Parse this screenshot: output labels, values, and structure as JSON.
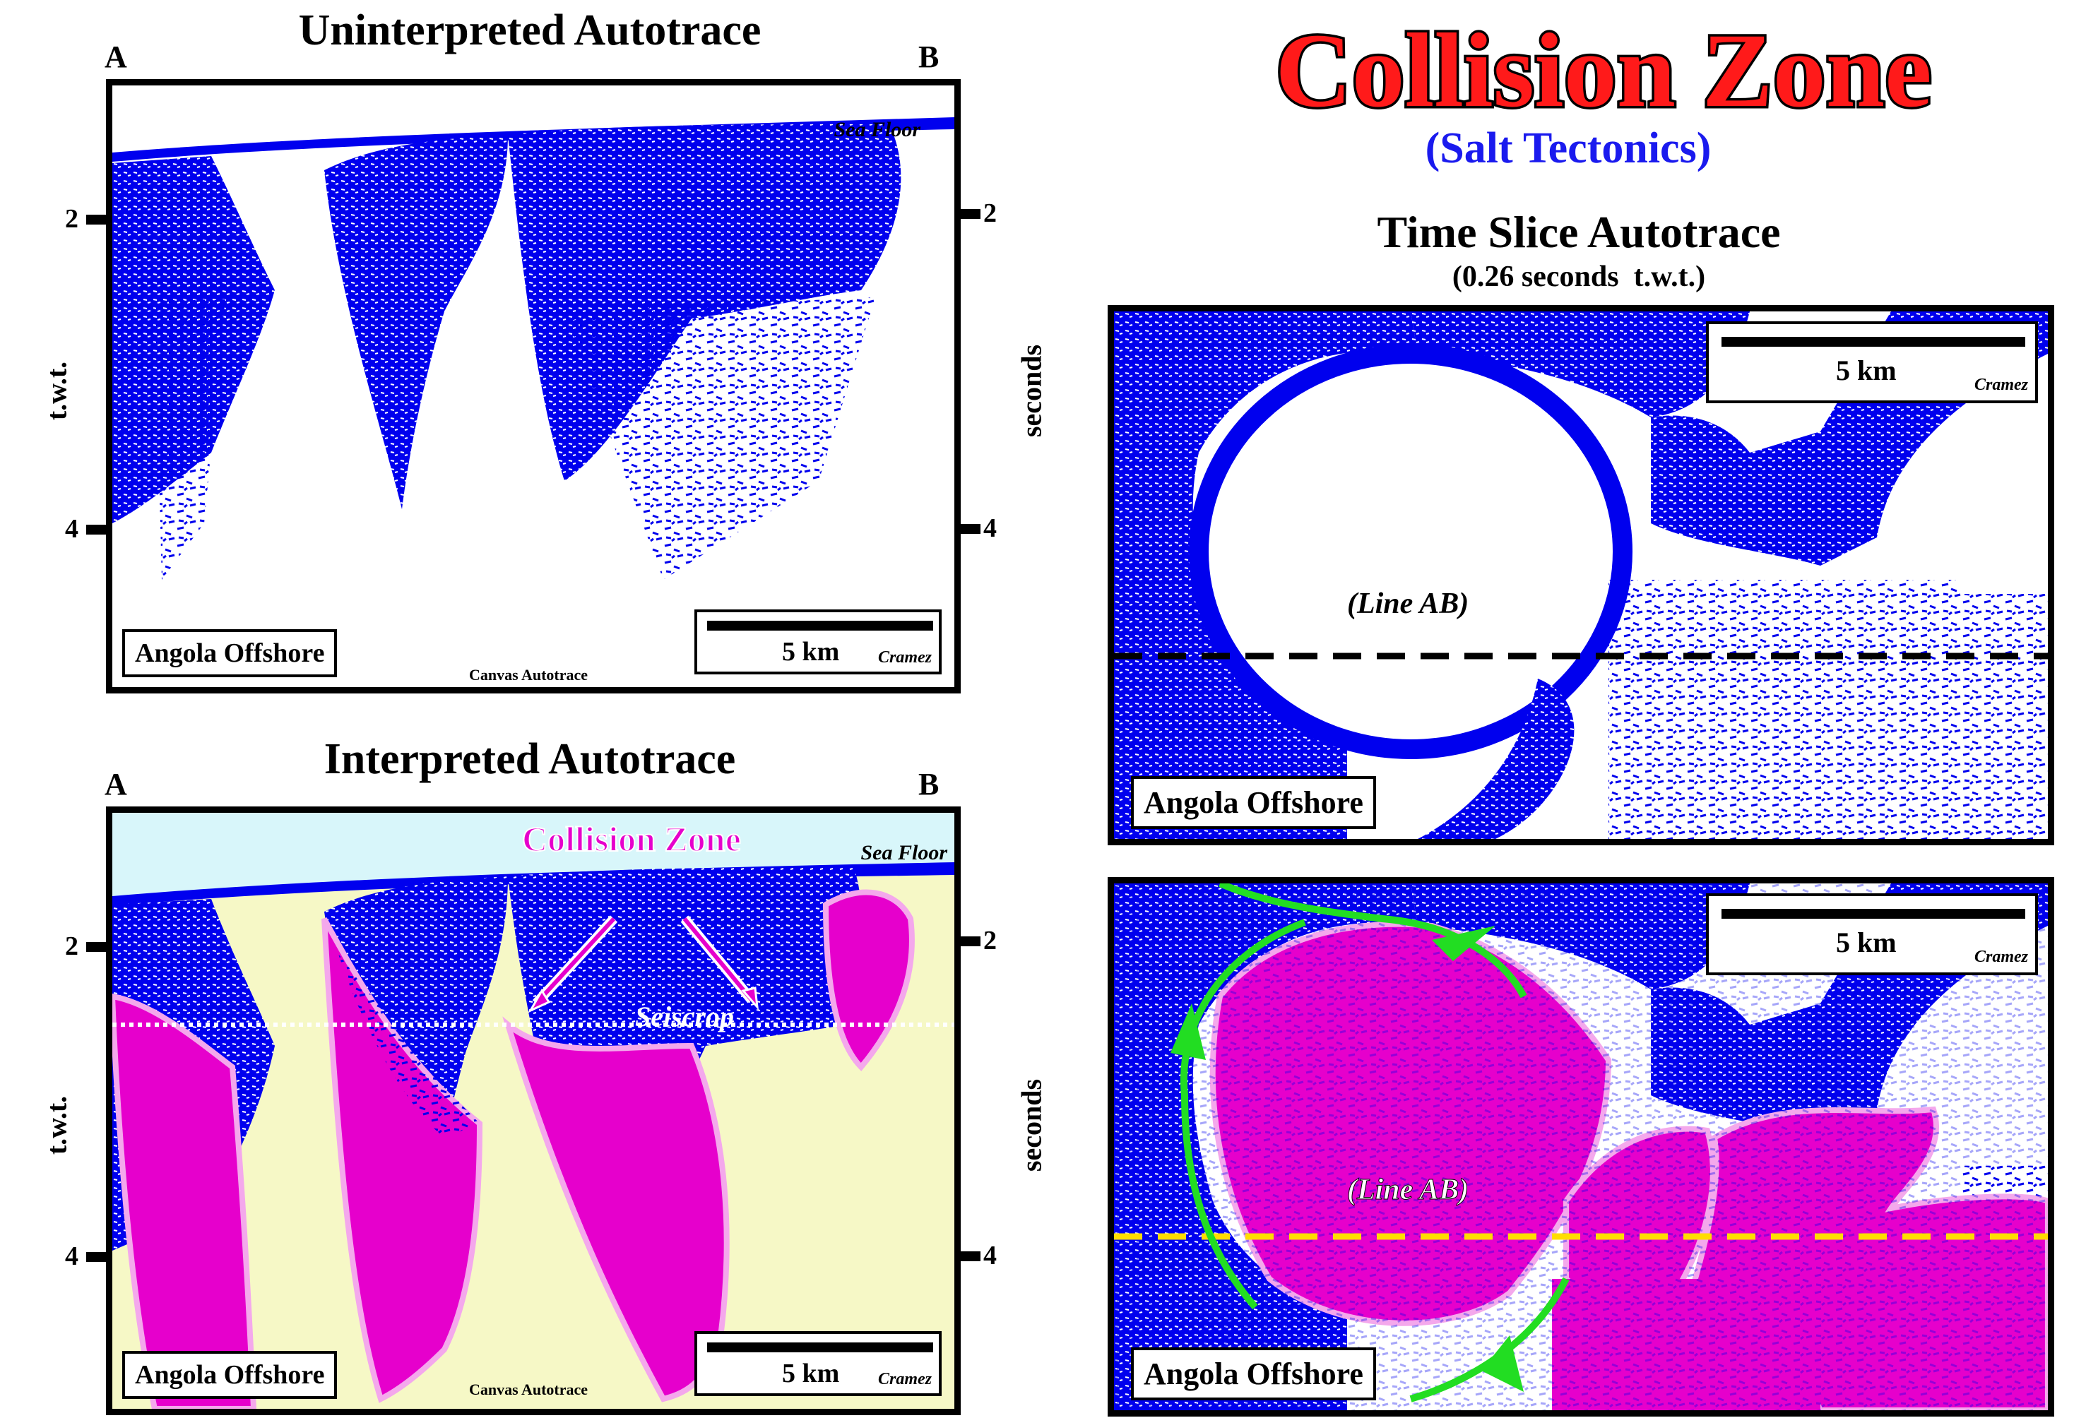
{
  "main_title": "Collision Zone",
  "main_subtitle": "(Salt Tectonics)",
  "panels": {
    "uninterpreted": {
      "title": "Uninterpreted Autotrace",
      "end_a": "A",
      "end_b": "B",
      "sea_floor": "Sea Floor",
      "left_axis_label": "t.w.t.",
      "right_axis_label": "seconds",
      "ticks": [
        "2",
        "4"
      ],
      "location": "Angola Offshore",
      "footer": "Canvas Autotrace",
      "scale": "5 km",
      "author": "Cramez"
    },
    "interpreted": {
      "title": "Interpreted Autotrace",
      "end_a": "A",
      "end_b": "B",
      "sea_floor": "Sea Floor",
      "collision_label": "Collision Zone",
      "seiscrop_label": "Seiscrop",
      "left_axis_label": "t.w.t.",
      "right_axis_label": "seconds",
      "ticks": [
        "2",
        "4"
      ],
      "location": "Angola Offshore",
      "footer": "Canvas Autotrace",
      "scale": "5 km",
      "author": "Cramez"
    },
    "time_slice": {
      "title": "Time Slice Autotrace",
      "subtitle": "(0.26 seconds  t.w.t.)",
      "line_label": "(Line AB)",
      "location": "Angola Offshore",
      "scale": "5 km",
      "author": "Cramez"
    },
    "time_slice_interpreted": {
      "line_label": "(Line AB)",
      "location": "Angola Offshore",
      "scale": "5 km",
      "author": "Cramez"
    }
  },
  "colors": {
    "seismic_blue": "#0000ee",
    "salt_magenta": "#e600cc",
    "sediment_yellow": "#f6f8c6",
    "water_cyan": "#d8f6fa",
    "title_red": "#ff1a1a",
    "subtitle_blue": "#1a1aee",
    "arrow_green": "#22dd22",
    "line_yellow": "#ffdd00"
  }
}
